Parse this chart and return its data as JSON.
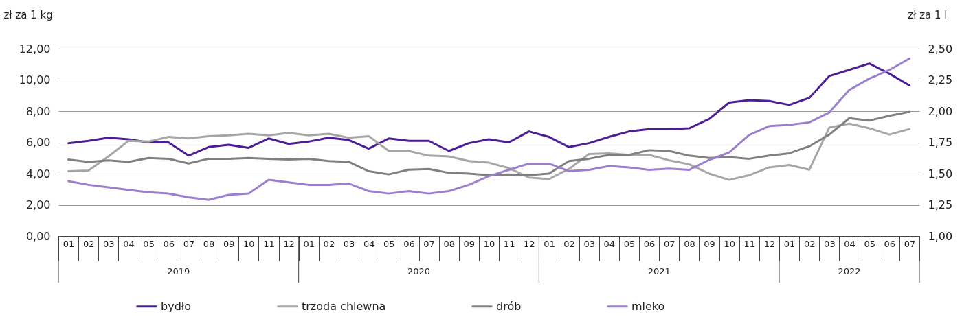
{
  "chart_data": {
    "type": "line",
    "ylabel": "zł za 1 kg",
    "y2label": "zł za 1 l",
    "categories": [
      "01",
      "02",
      "03",
      "04",
      "05",
      "06",
      "07",
      "08",
      "09",
      "10",
      "11",
      "12",
      "01",
      "02",
      "03",
      "04",
      "05",
      "06",
      "07",
      "08",
      "09",
      "10",
      "11",
      "12",
      "01",
      "02",
      "03",
      "04",
      "05",
      "06",
      "07",
      "08",
      "09",
      "10",
      "11",
      "12",
      "01",
      "02",
      "03",
      "04",
      "05",
      "06",
      "07"
    ],
    "annotations": [
      "2019",
      "2020",
      "2021",
      "2022"
    ],
    "series": [
      {
        "name": "bydło",
        "color": "#4b1e96",
        "values": [
          5.95,
          6.1,
          6.3,
          6.2,
          6.0,
          6.0,
          5.15,
          5.7,
          5.85,
          5.65,
          6.25,
          5.9,
          6.05,
          6.3,
          6.15,
          5.6,
          6.25,
          6.1,
          6.1,
          5.45,
          5.95,
          6.2,
          6.0,
          6.7,
          6.35,
          5.7,
          5.95,
          6.35,
          6.7,
          6.85,
          6.85,
          6.9,
          7.5,
          8.55,
          8.7,
          8.65,
          8.4,
          8.85,
          10.25,
          10.65,
          11.05,
          10.4,
          9.65
        ]
      },
      {
        "name": "trzoda chlewna",
        "color": "#a6a6a6",
        "values": [
          4.15,
          4.2,
          5.1,
          6.1,
          6.05,
          6.35,
          6.25,
          6.4,
          6.45,
          6.55,
          6.45,
          6.6,
          6.45,
          6.55,
          6.3,
          6.4,
          5.45,
          5.45,
          5.15,
          5.1,
          4.8,
          4.7,
          4.35,
          3.75,
          3.65,
          4.3,
          5.25,
          5.3,
          5.2,
          5.2,
          4.85,
          4.6,
          4.0,
          3.6,
          3.9,
          4.4,
          4.55,
          4.25,
          6.95,
          7.2,
          6.9,
          6.5,
          6.85
        ]
      },
      {
        "name": "drób",
        "color": "#808080",
        "values": [
          4.9,
          4.75,
          4.85,
          4.75,
          5.0,
          4.95,
          4.65,
          4.95,
          4.95,
          5.0,
          4.95,
          4.9,
          4.95,
          4.8,
          4.75,
          4.15,
          3.95,
          4.25,
          4.3,
          4.05,
          4.0,
          3.9,
          3.95,
          3.9,
          4.0,
          4.8,
          4.95,
          5.2,
          5.2,
          5.5,
          5.45,
          5.15,
          5.0,
          5.05,
          4.95,
          5.15,
          5.3,
          5.75,
          6.5,
          7.55,
          7.4,
          7.7,
          7.95
        ]
      },
      {
        "name": "mleko",
        "color": "#9b7fcf",
        "axis": "y2",
        "values": [
          1.44,
          1.41,
          1.39,
          1.37,
          1.35,
          1.34,
          1.31,
          1.29,
          1.33,
          1.34,
          1.45,
          1.43,
          1.41,
          1.41,
          1.42,
          1.36,
          1.34,
          1.36,
          1.34,
          1.36,
          1.41,
          1.48,
          1.53,
          1.58,
          1.58,
          1.52,
          1.53,
          1.56,
          1.55,
          1.53,
          1.54,
          1.53,
          1.61,
          1.67,
          1.81,
          1.88,
          1.89,
          1.91,
          1.99,
          2.17,
          2.26,
          2.33,
          2.42
        ]
      }
    ],
    "ylim": [
      0,
      12
    ],
    "yticks": [
      {
        "value": 0,
        "label": "0,00"
      },
      {
        "value": 2,
        "label": "2,00"
      },
      {
        "value": 4,
        "label": "4,00"
      },
      {
        "value": 6,
        "label": "6,00"
      },
      {
        "value": 8,
        "label": "8,00"
      },
      {
        "value": 10,
        "label": "10,00"
      },
      {
        "value": 12,
        "label": "12,00"
      }
    ],
    "y2lim": [
      1,
      2.5
    ],
    "y2ticks": [
      {
        "value": 1,
        "label": "1,00"
      },
      {
        "value": 1.25,
        "label": "1,25"
      },
      {
        "value": 1.5,
        "label": "1,50"
      },
      {
        "value": 1.75,
        "label": "1,75"
      },
      {
        "value": 2,
        "label": "2,00"
      },
      {
        "value": 2.25,
        "label": "2,25"
      },
      {
        "value": 2.5,
        "label": "2,50"
      }
    ],
    "grid": "y",
    "legend": "bottom"
  }
}
